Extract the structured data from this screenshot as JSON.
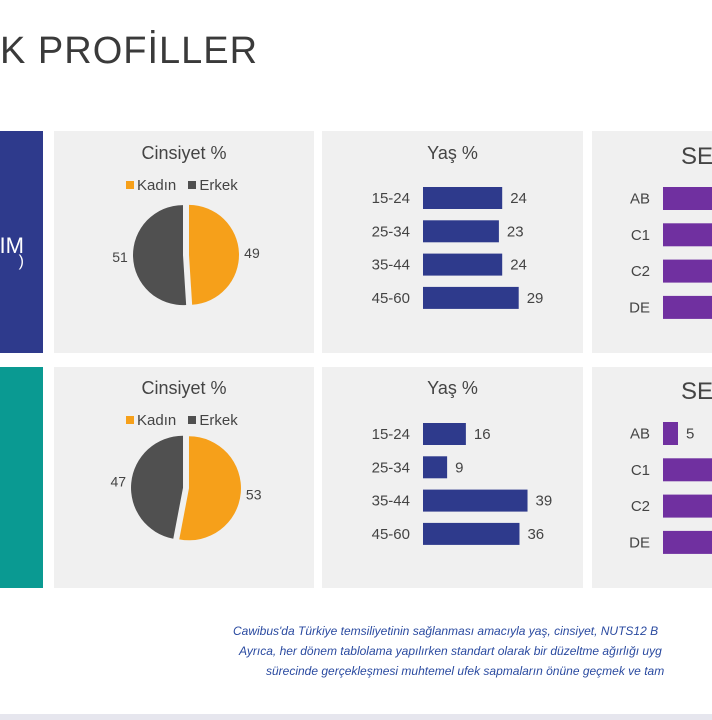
{
  "title": "K PROFİLLER",
  "side_top_text": "IM",
  "side_top_text2": ")",
  "colors": {
    "kadin": "#f6a01a",
    "erkek": "#505050",
    "age_bar": "#2e3a8c",
    "ses_bar": "#7030a0",
    "side_top": "#2e3a8c",
    "side_bottom": "#0a9a92"
  },
  "chart_data": [
    {
      "type": "pie",
      "title": "Cinsiyet %",
      "labels": [
        "Kadın",
        "Erkek"
      ],
      "values": [
        49,
        51
      ],
      "legend": "top"
    },
    {
      "type": "bar",
      "orientation": "horizontal",
      "title": "Yaş %",
      "categories": [
        "15-24",
        "25-34",
        "35-44",
        "45-60"
      ],
      "values": [
        24,
        23,
        24,
        29
      ]
    },
    {
      "type": "bar",
      "orientation": "horizontal",
      "title": "SE",
      "categories": [
        "AB",
        "C1",
        "C2",
        "DE"
      ],
      "values": [
        null,
        null,
        null,
        null
      ]
    },
    {
      "type": "pie",
      "title": "Cinsiyet %",
      "labels": [
        "Kadın",
        "Erkek"
      ],
      "values": [
        53,
        47
      ],
      "legend": "top"
    },
    {
      "type": "bar",
      "orientation": "horizontal",
      "title": "Yaş %",
      "categories": [
        "15-24",
        "25-34",
        "35-44",
        "45-60"
      ],
      "values": [
        16,
        9,
        39,
        36
      ]
    },
    {
      "type": "bar",
      "orientation": "horizontal",
      "title": "SE",
      "categories": [
        "AB",
        "C1",
        "C2",
        "DE"
      ],
      "values": [
        5,
        null,
        null,
        null
      ]
    }
  ],
  "footnote": [
    "Cawibus'da Türkiye temsiliyetinin sağlanması amacıyla  yaş, cinsiyet, NUTS12 B",
    "Ayrıca, her dönem tablolama yapılırken standart olarak bir düzeltme  ağırlığı uyg",
    "sürecinde gerçekleşmesi muhtemel ufek sapmaların önüne geçmek ve tam"
  ]
}
